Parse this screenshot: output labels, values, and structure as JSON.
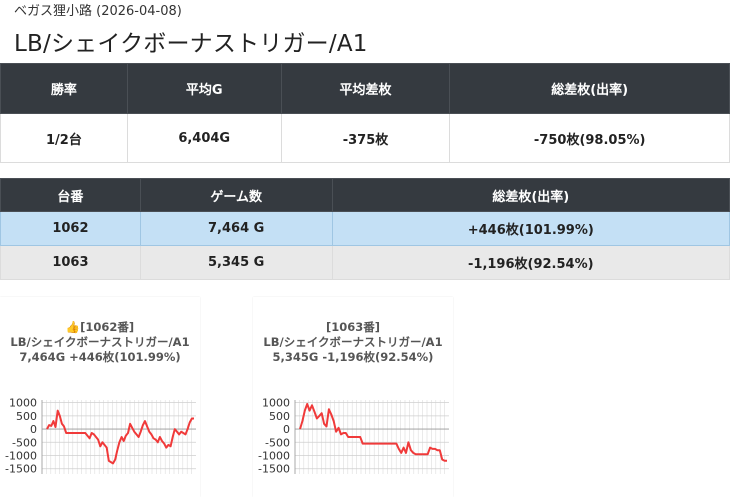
{
  "header": {
    "subtitle": "ベガス狸小路 (2026-04-08)",
    "title": "LB/シェイクボーナストリガー/A1"
  },
  "summary": {
    "headers": [
      "勝率",
      "平均G",
      "平均差枚",
      "総差枚(出率)"
    ],
    "values": [
      "1/2台",
      "6,404G",
      "-375枚",
      "-750枚(98.05%)"
    ]
  },
  "machines": {
    "headers": [
      "台番",
      "ゲーム数",
      "総差枚(出率)"
    ],
    "rows": [
      {
        "id": "1062",
        "games": "7,464 G",
        "total": "+446枚(101.99%)"
      },
      {
        "id": "1063",
        "games": "5,345 G",
        "total": "-1,196枚(92.54%)"
      }
    ]
  },
  "colors": {
    "line": "#f03a3a",
    "header_bg": "#353a40",
    "row_highlight": "#c4e0f5",
    "row_alt": "#e9e9e9"
  },
  "cards": [
    {
      "line1": "👍[1062番]",
      "line2": "LB/シェイクボーナストリガー/A1",
      "line3": "7,464G +446枚(101.99%)"
    },
    {
      "line1": "[1063番]",
      "line2": "LB/シェイクボーナストリガー/A1",
      "line3": "5,345G -1,196枚(92.54%)"
    }
  ],
  "chart_data": [
    {
      "type": "line",
      "y_ticks": [
        1000,
        500,
        0,
        -500,
        -1000,
        -1500
      ],
      "ylim": [
        -1700,
        1100
      ],
      "grid": true,
      "series": [
        {
          "values": [
            0,
            150,
            120,
            300,
            80,
            700,
            500,
            200,
            100,
            -150,
            -150,
            -150,
            -150,
            -150,
            -150,
            -150,
            -150,
            -150,
            -150,
            -250,
            -350,
            -150,
            -200,
            -300,
            -400,
            -650,
            -500,
            -600,
            -700,
            -1200,
            -1250,
            -1300,
            -1150,
            -800,
            -500,
            -300,
            -450,
            -250,
            -150,
            200,
            50,
            -100,
            -200,
            -300,
            -100,
            150,
            300,
            100,
            -100,
            -200,
            -350,
            -400,
            -500,
            -300,
            -450,
            -550,
            -700,
            -600,
            -650,
            -300,
            0,
            -100,
            -200,
            -100,
            -150,
            -200,
            0,
            250,
            400,
            400
          ]
        }
      ]
    },
    {
      "type": "line",
      "y_ticks": [
        1000,
        500,
        0,
        -500,
        -1000,
        -1500
      ],
      "ylim": [
        -1700,
        1100
      ],
      "grid": true,
      "series": [
        {
          "values": [
            0,
            300,
            700,
            950,
            700,
            900,
            650,
            400,
            500,
            600,
            200,
            100,
            750,
            550,
            300,
            -100,
            50,
            -200,
            -150,
            -150,
            -300,
            -300,
            -300,
            -300,
            -300,
            -300,
            -550,
            -550,
            -550,
            -550,
            -550,
            -550,
            -550,
            -550,
            -550,
            -550,
            -550,
            -550,
            -550,
            -550,
            -550,
            -750,
            -900,
            -700,
            -900,
            -500,
            -800,
            -900,
            -950,
            -950,
            -950,
            -950,
            -950,
            -950,
            -700,
            -750,
            -750,
            -800,
            -800,
            -1150,
            -1200,
            -1200
          ]
        }
      ]
    }
  ]
}
